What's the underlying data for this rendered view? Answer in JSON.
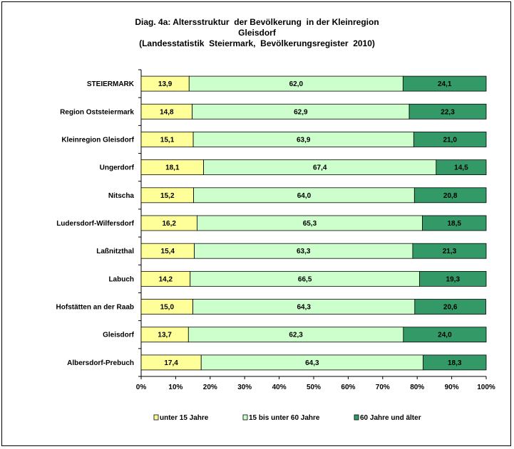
{
  "chart_data": {
    "type": "bar",
    "stacked": "percent",
    "orientation": "horizontal",
    "title_lines": [
      "Diag. 4a: Altersstruktur  der Bevölkerung  in der Kleinregion",
      "Gleisdorf",
      "(Landesstatistik  Steiermark,  Bevölkerungsregister  2010)"
    ],
    "categories": [
      "STEIERMARK",
      "Region Oststeiermark",
      "Kleinregion Gleisdorf",
      "Ungerdorf",
      "Nitscha",
      "Ludersdorf-Wilfersdorf",
      "Laßnitzthal",
      "Labuch",
      "Hofstätten an der Raab",
      "Gleisdorf",
      "Albersdorf-Prebuch"
    ],
    "series": [
      {
        "name": "unter 15 Jahre",
        "color": "#ffff99",
        "values": [
          13.9,
          14.8,
          15.1,
          18.1,
          15.2,
          16.2,
          15.4,
          14.2,
          15.0,
          13.7,
          17.4
        ],
        "labels": [
          "13,9",
          "14,8",
          "15,1",
          "18,1",
          "15,2",
          "16,2",
          "15,4",
          "14,2",
          "15,0",
          "13,7",
          "17,4"
        ]
      },
      {
        "name": "15 bis unter 60 Jahre",
        "color": "#ccffcc",
        "values": [
          62.0,
          62.9,
          63.9,
          67.4,
          64.0,
          65.3,
          63.3,
          66.5,
          64.3,
          62.3,
          64.3
        ],
        "labels": [
          "62,0",
          "62,9",
          "63,9",
          "67,4",
          "64,0",
          "65,3",
          "63,3",
          "66,5",
          "64,3",
          "62,3",
          "64,3"
        ]
      },
      {
        "name": "60 Jahre und älter",
        "color": "#339966",
        "values": [
          24.1,
          22.3,
          21.0,
          14.5,
          20.8,
          18.5,
          21.3,
          19.3,
          20.6,
          24.0,
          18.3
        ],
        "labels": [
          "24,1",
          "22,3",
          "21,0",
          "14,5",
          "20,8",
          "18,5",
          "21,3",
          "19,3",
          "20,6",
          "24,0",
          "18,3"
        ]
      }
    ],
    "xlim": [
      0,
      100
    ],
    "xticks": [
      "0%",
      "10%",
      "20%",
      "30%",
      "40%",
      "50%",
      "60%",
      "70%",
      "80%",
      "90%",
      "100%"
    ],
    "grid": false,
    "legend_position": "bottom"
  }
}
